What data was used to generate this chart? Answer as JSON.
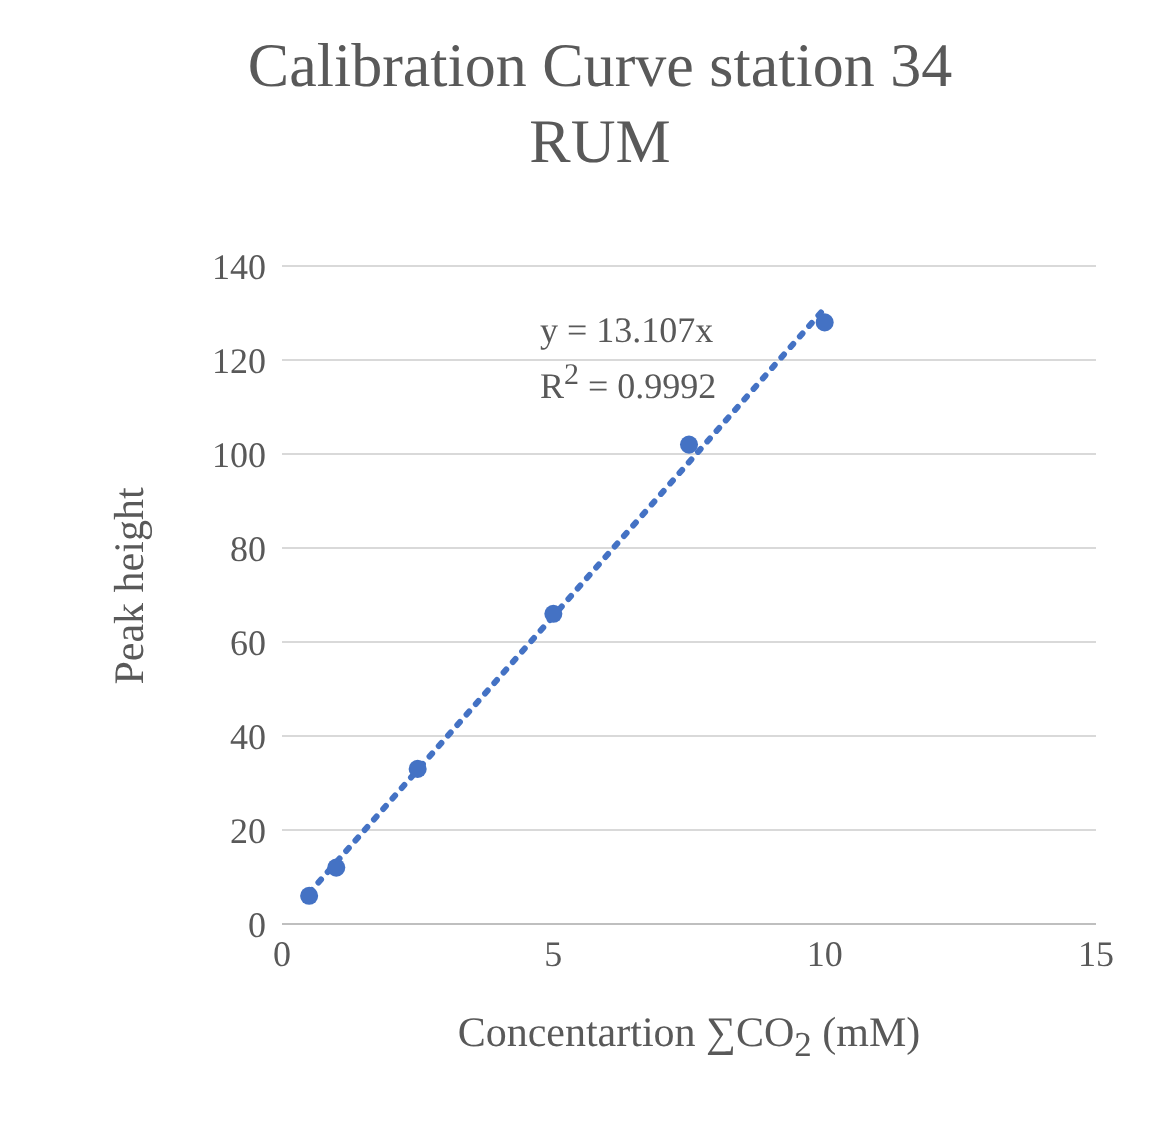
{
  "chart_data": {
    "type": "scatter",
    "title": "Calibration Curve station 34 RUM",
    "xlabel": "Concentartion ∑CO$_{2}$  (mM)",
    "ylabel": "Peak height",
    "x": [
      0.5,
      1,
      2.5,
      5,
      7.5,
      10
    ],
    "series": [
      {
        "color": "#4472c4",
        "values": [
          6,
          12,
          33,
          66,
          102,
          128
        ]
      },
      {
        "type": "line",
        "color": "#4472c4",
        "x": [
          0.5,
          10
        ],
        "values": [
          6.6,
          131
        ],
        "line_style": "dotted",
        "marker": "none"
      }
    ],
    "annotations": [
      "y = 13.107x",
      "R$^{2}$ = 0.9992"
    ],
    "xlim": [
      0,
      15
    ],
    "xticks": [
      0,
      5,
      10,
      15
    ],
    "ylim": [
      0,
      140
    ],
    "yticks": [
      0,
      20,
      40,
      60,
      80,
      100,
      120,
      140
    ],
    "grid": "y",
    "marker": "circle"
  }
}
